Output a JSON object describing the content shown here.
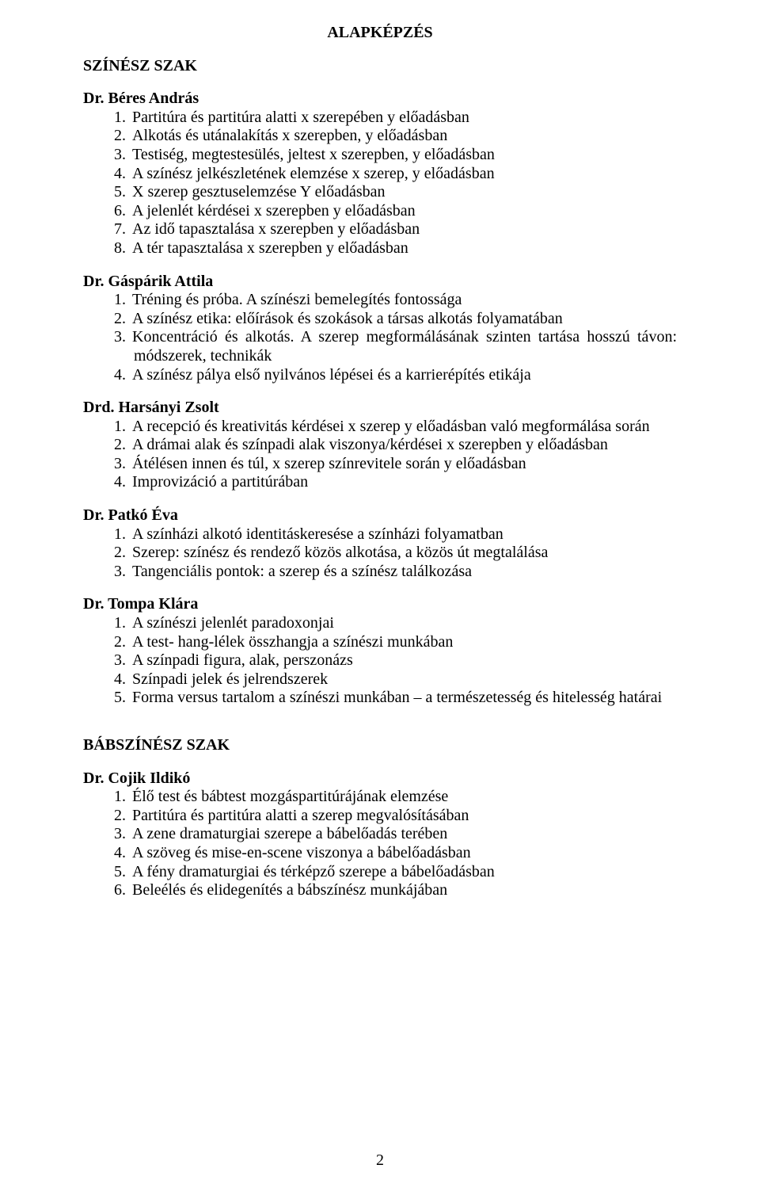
{
  "heading_center": "ALAPKÉPZÉS",
  "heading_left": "SZÍNÉSZ SZAK",
  "authors": [
    {
      "name": "Dr. Béres András",
      "items": [
        "Partitúra és partitúra alatti x szerepében y előadásban",
        "Alkotás és utánalakítás x szerepben, y előadásban",
        "Testiség, megtestesülés, jeltest x szerepben, y előadásban",
        "A színész jelkészletének elemzése x szerep, y előadásban",
        "X szerep gesztuselemzése Y előadásban",
        "A jelenlét kérdései x szerepben y előadásban",
        "Az idő tapasztalása x szerepben y előadásban",
        "A tér tapasztalása x szerepben y előadásban"
      ]
    },
    {
      "name": "Dr. Gáspárik Attila",
      "items": [
        "Tréning és próba. A színészi bemelegítés fontossága",
        "A színész etika: előírások és szokások a társas alkotás folyamatában",
        "Koncentráció és alkotás. A szerep megformálásának szinten tartása hosszú távon: módszerek, technikák",
        "A színész pálya első nyilvános lépései és a karrierépítés etikája"
      ]
    },
    {
      "name": "Drd. Harsányi Zsolt",
      "items": [
        "A recepció és kreativitás kérdései x szerep y előadásban való megformálása során",
        "A drámai alak és színpadi alak viszonya/kérdései x szerepben y előadásban",
        "Átélésen innen és túl, x szerep színrevitele során y előadásban",
        "Improvizáció a partitúrában"
      ]
    },
    {
      "name": "Dr. Patkó Éva",
      "items": [
        "A színházi alkotó identitáskeresése a színházi folyamatban",
        "Szerep: színész és rendező közös alkotása, a közös út megtalálása",
        "Tangenciális pontok: a szerep és a színész találkozása"
      ]
    },
    {
      "name": "Dr. Tompa Klára",
      "items": [
        "A színészi jelenlét paradoxonjai",
        "A test- hang-lélek összhangja a színészi munkában",
        "A színpadi figura, alak, perszonázs",
        "Színpadi jelek és jelrendszerek",
        "Forma versus tartalom a színészi munkában – a természetesség és hitelesség határai"
      ]
    }
  ],
  "section2_heading": "BÁBSZÍNÉSZ SZAK",
  "authors2": [
    {
      "name": "Dr. Cojik Ildikó",
      "items": [
        "Élő test és bábtest mozgáspartitúrájának elemzése",
        "Partitúra és partitúra alatti a szerep megvalósításában",
        "A zene dramaturgiai szerepe a bábelőadás terében",
        "A szöveg és mise-en-scene viszonya a bábelőadásban",
        "A fény dramaturgiai és térképző szerepe a bábelőadásban",
        "Beleélés és elidegenítés a bábszínész munkájában"
      ]
    }
  ],
  "page_number": "2"
}
